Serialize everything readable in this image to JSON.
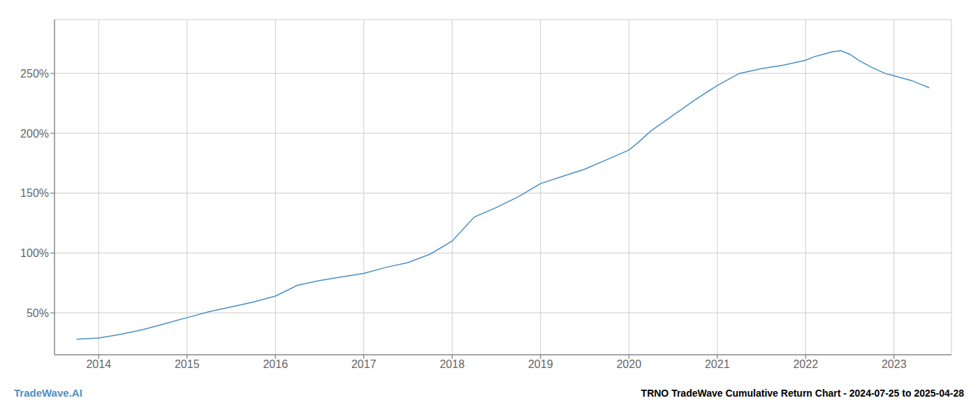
{
  "chart_data": {
    "type": "line",
    "title": "TRNO TradeWave Cumulative Return Chart - 2024-07-25 to 2025-04-28",
    "annotations": [
      {
        "text": "TradeWave.AI",
        "color": "#4a90c4"
      }
    ],
    "x": [
      2013.75,
      2014.0,
      2014.25,
      2014.5,
      2014.75,
      2015.0,
      2015.25,
      2015.5,
      2015.75,
      2016.0,
      2016.25,
      2016.5,
      2016.75,
      2017.0,
      2017.25,
      2017.5,
      2017.75,
      2018.0,
      2018.25,
      2018.5,
      2018.75,
      2019.0,
      2019.25,
      2019.5,
      2019.75,
      2020.0,
      2020.1,
      2020.25,
      2020.5,
      2020.75,
      2021.0,
      2021.25,
      2021.5,
      2021.75,
      2022.0,
      2022.1,
      2022.2,
      2022.3,
      2022.4,
      2022.5,
      2022.6,
      2022.75,
      2022.9,
      2023.0,
      2023.1,
      2023.2,
      2023.3,
      2023.4
    ],
    "values": [
      28,
      29,
      32,
      36,
      41,
      46,
      51,
      55,
      59,
      64,
      73,
      77,
      80,
      83,
      88,
      92,
      99,
      110,
      130,
      138,
      147,
      158,
      164,
      170,
      178,
      186,
      192,
      202,
      215,
      228,
      240,
      250,
      254,
      257,
      261,
      264,
      266,
      268,
      269,
      266,
      261,
      255,
      250,
      248,
      246,
      244,
      241,
      238
    ],
    "color": "#4a90c4",
    "xlim": [
      2013.5,
      2023.65
    ],
    "ylim": [
      15,
      295
    ],
    "xticks": [
      2014,
      2015,
      2016,
      2017,
      2018,
      2019,
      2020,
      2021,
      2022,
      2023
    ],
    "yticks": [
      {
        "value": 50,
        "label": "50%"
      },
      {
        "value": 100,
        "label": "100%"
      },
      {
        "value": 150,
        "label": "150%"
      },
      {
        "value": 200,
        "label": "200%"
      },
      {
        "value": 250,
        "label": "250%"
      }
    ],
    "grid": true
  }
}
